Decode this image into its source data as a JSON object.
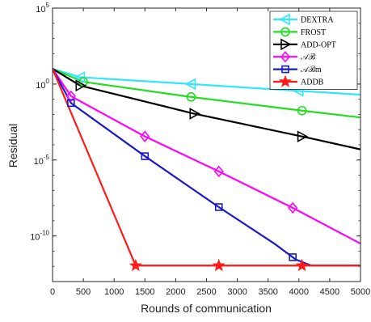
{
  "chart_data": {
    "type": "line",
    "title": "",
    "xlabel": "Rounds of communication",
    "ylabel": "Residual",
    "xlim": [
      0,
      5000
    ],
    "ylim_log10": [
      -13,
      5
    ],
    "y_scale": "log",
    "grid": false,
    "legend_position": "top-right",
    "x_ticks": [
      "0",
      "500",
      "1000",
      "1500",
      "2000",
      "2500",
      "3000",
      "3500",
      "4000",
      "4500",
      "5000"
    ],
    "y_ticks": [
      {
        "base": "10",
        "exp": "5"
      },
      {
        "base": "10",
        "exp": "0"
      },
      {
        "base": "10",
        "exp": "-5"
      },
      {
        "base": "10",
        "exp": "-10"
      }
    ],
    "series": [
      {
        "name": "DEXTRA",
        "color": "#33e6ff",
        "marker": "triangle-left",
        "points": [
          [
            0,
            1.0
          ],
          [
            450,
            0.45
          ],
          [
            2250,
            0.0
          ],
          [
            4000,
            -0.45
          ],
          [
            5000,
            -0.7
          ]
        ],
        "markers_at": [
          450,
          2250,
          4000
        ]
      },
      {
        "name": "FROST",
        "color": "#22dd22",
        "marker": "circle",
        "points": [
          [
            0,
            1.0
          ],
          [
            500,
            0.15
          ],
          [
            2250,
            -0.85
          ],
          [
            4050,
            -1.75
          ],
          [
            5000,
            -2.2
          ]
        ],
        "markers_at": [
          500,
          2250,
          4050
        ]
      },
      {
        "name": "ADD-OPT",
        "color": "#000000",
        "marker": "triangle-right",
        "points": [
          [
            0,
            1.0
          ],
          [
            450,
            -0.1
          ],
          [
            2300,
            -1.95
          ],
          [
            4050,
            -3.45
          ],
          [
            5000,
            -4.3
          ]
        ],
        "markers_at": [
          450,
          2300,
          4050
        ]
      },
      {
        "name": "𝒜ℬ",
        "color": "#ff00ff",
        "marker": "diamond",
        "points": [
          [
            0,
            1.0
          ],
          [
            300,
            -0.8
          ],
          [
            1500,
            -3.45
          ],
          [
            2700,
            -5.75
          ],
          [
            3900,
            -8.15
          ],
          [
            5000,
            -10.5
          ]
        ],
        "markers_at": [
          300,
          1500,
          2700,
          3900
        ]
      },
      {
        "name": "𝒜ℬm",
        "color": "#1a1acc",
        "marker": "square",
        "points": [
          [
            0,
            1.0
          ],
          [
            300,
            -1.25
          ],
          [
            1500,
            -4.75
          ],
          [
            2700,
            -8.1
          ],
          [
            3600,
            -10.5
          ],
          [
            3950,
            -11.55
          ],
          [
            4200,
            -11.95
          ],
          [
            5000,
            -11.95
          ]
        ],
        "markers_at": [
          300,
          1500,
          2700,
          3900
        ]
      },
      {
        "name": "ADDB",
        "color": "#ff1a1a",
        "marker": "star",
        "points": [
          [
            0,
            1.0
          ],
          [
            1350,
            -11.95
          ],
          [
            5000,
            -11.95
          ]
        ],
        "markers_at": [
          1350,
          2700,
          4050
        ]
      }
    ]
  }
}
